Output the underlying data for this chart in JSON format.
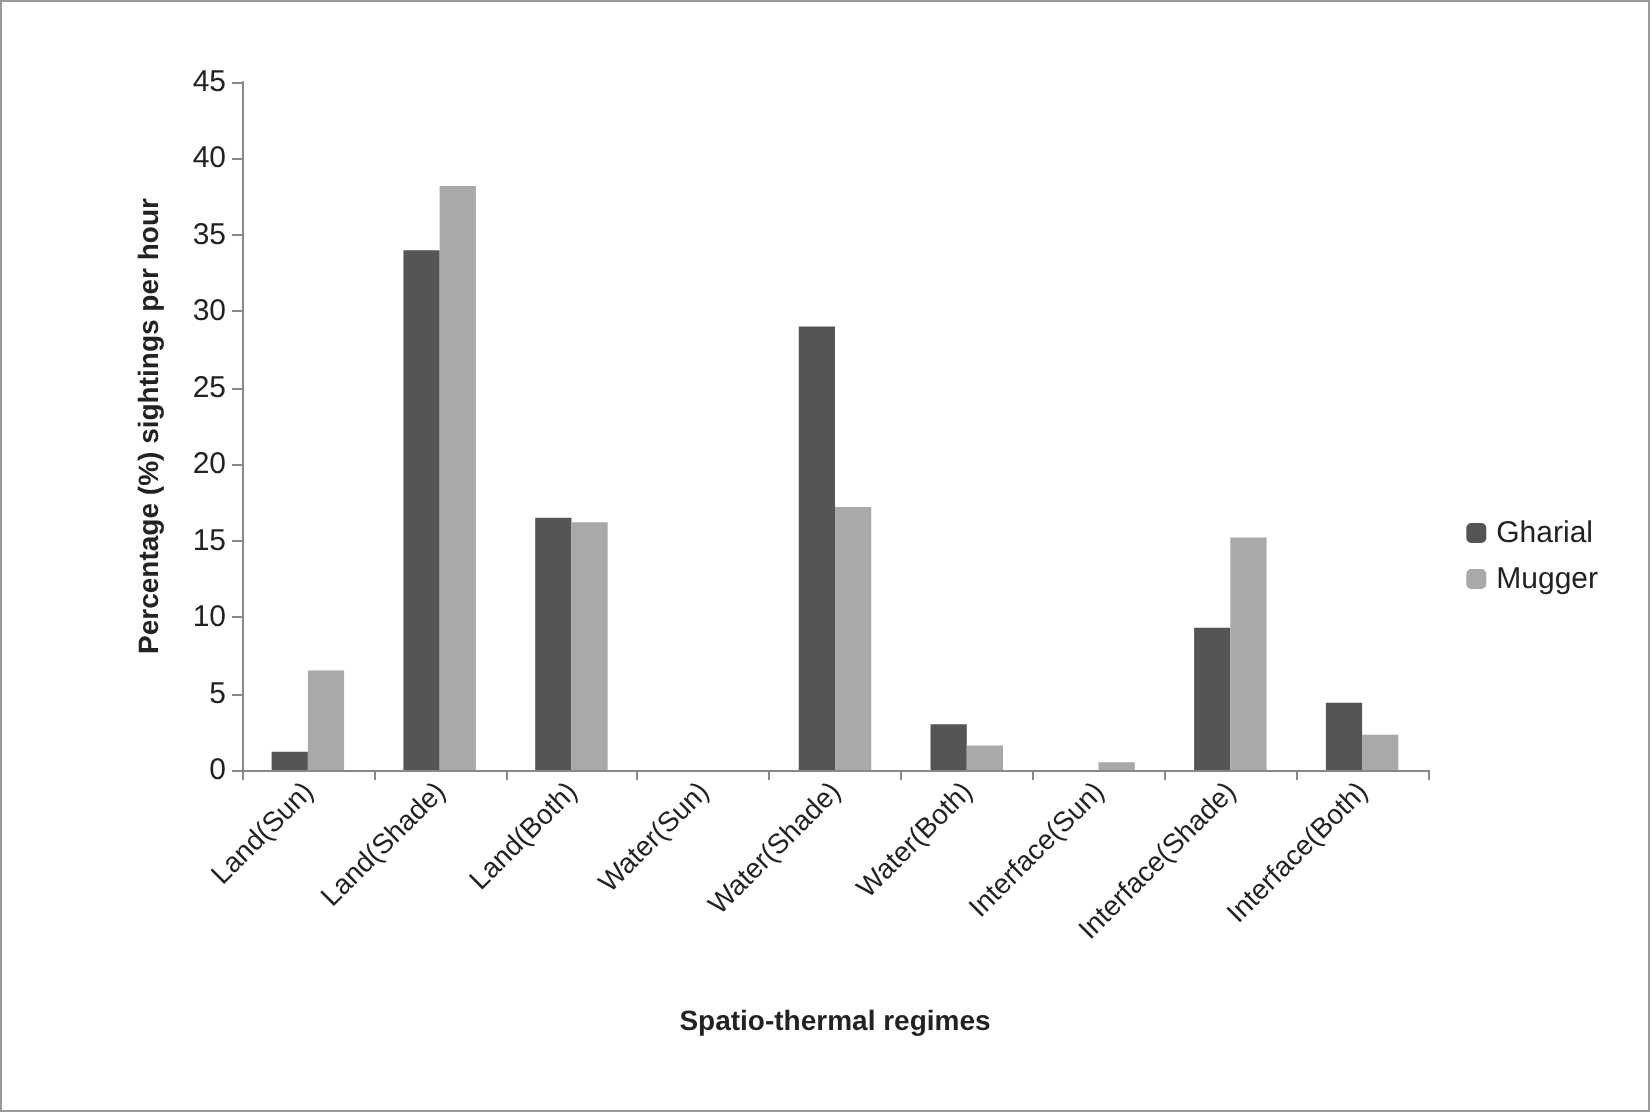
{
  "chart_data": {
    "type": "bar",
    "xlabel": "Spatio-thermal regimes",
    "ylabel": "Percentage (%) sightings per hour",
    "categories": [
      "Land(Sun)",
      "Land(Shade)",
      "Land(Both)",
      "Water(Sun)",
      "Water(Shade)",
      "Water(Both)",
      "Interface(Sun)",
      "Interface(Shade)",
      "Interface(Both)"
    ],
    "series": [
      {
        "name": "Gharial",
        "color": "#555555",
        "values": [
          1.2,
          34,
          16.5,
          0,
          29,
          3,
          0,
          9.3,
          4.4
        ]
      },
      {
        "name": "Mugger",
        "color": "#a9a9a9",
        "values": [
          6.5,
          38.2,
          16.2,
          0,
          17.2,
          1.6,
          0.5,
          15.2,
          2.3
        ]
      }
    ],
    "ylim": [
      0,
      45
    ],
    "yticks": [
      0,
      5,
      10,
      15,
      20,
      25,
      30,
      35,
      40,
      45
    ],
    "grid": false,
    "legend": "right"
  }
}
